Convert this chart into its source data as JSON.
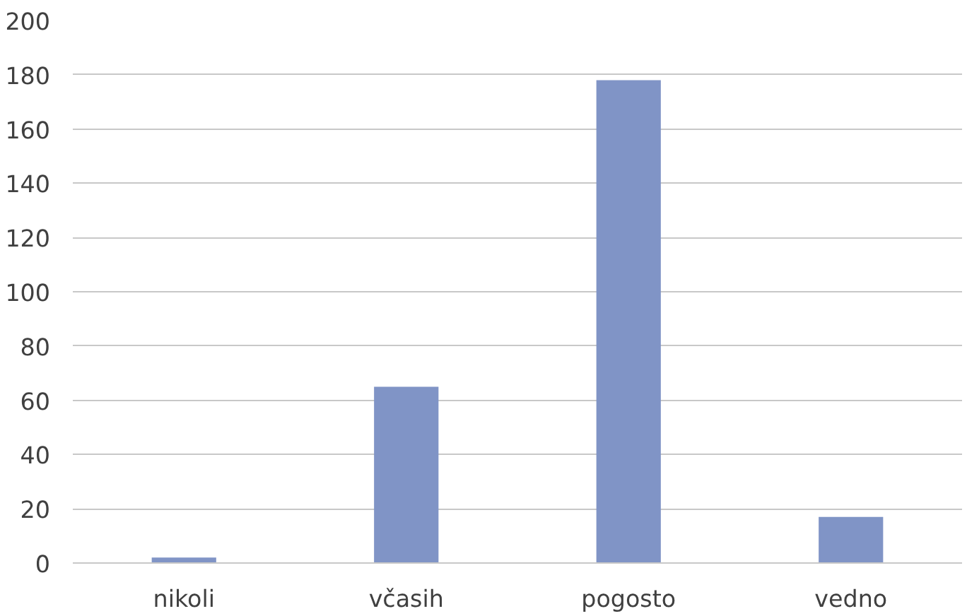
{
  "chart_data": {
    "type": "bar",
    "categories": [
      "nikoli",
      "včasih",
      "pogosto",
      "vedno"
    ],
    "values": [
      2,
      65,
      178,
      17
    ],
    "color": "#8094c6",
    "ylim": [
      0,
      200
    ],
    "yticks": [
      0,
      20,
      40,
      60,
      80,
      100,
      120,
      140,
      160,
      180,
      200
    ],
    "grid": "y"
  }
}
